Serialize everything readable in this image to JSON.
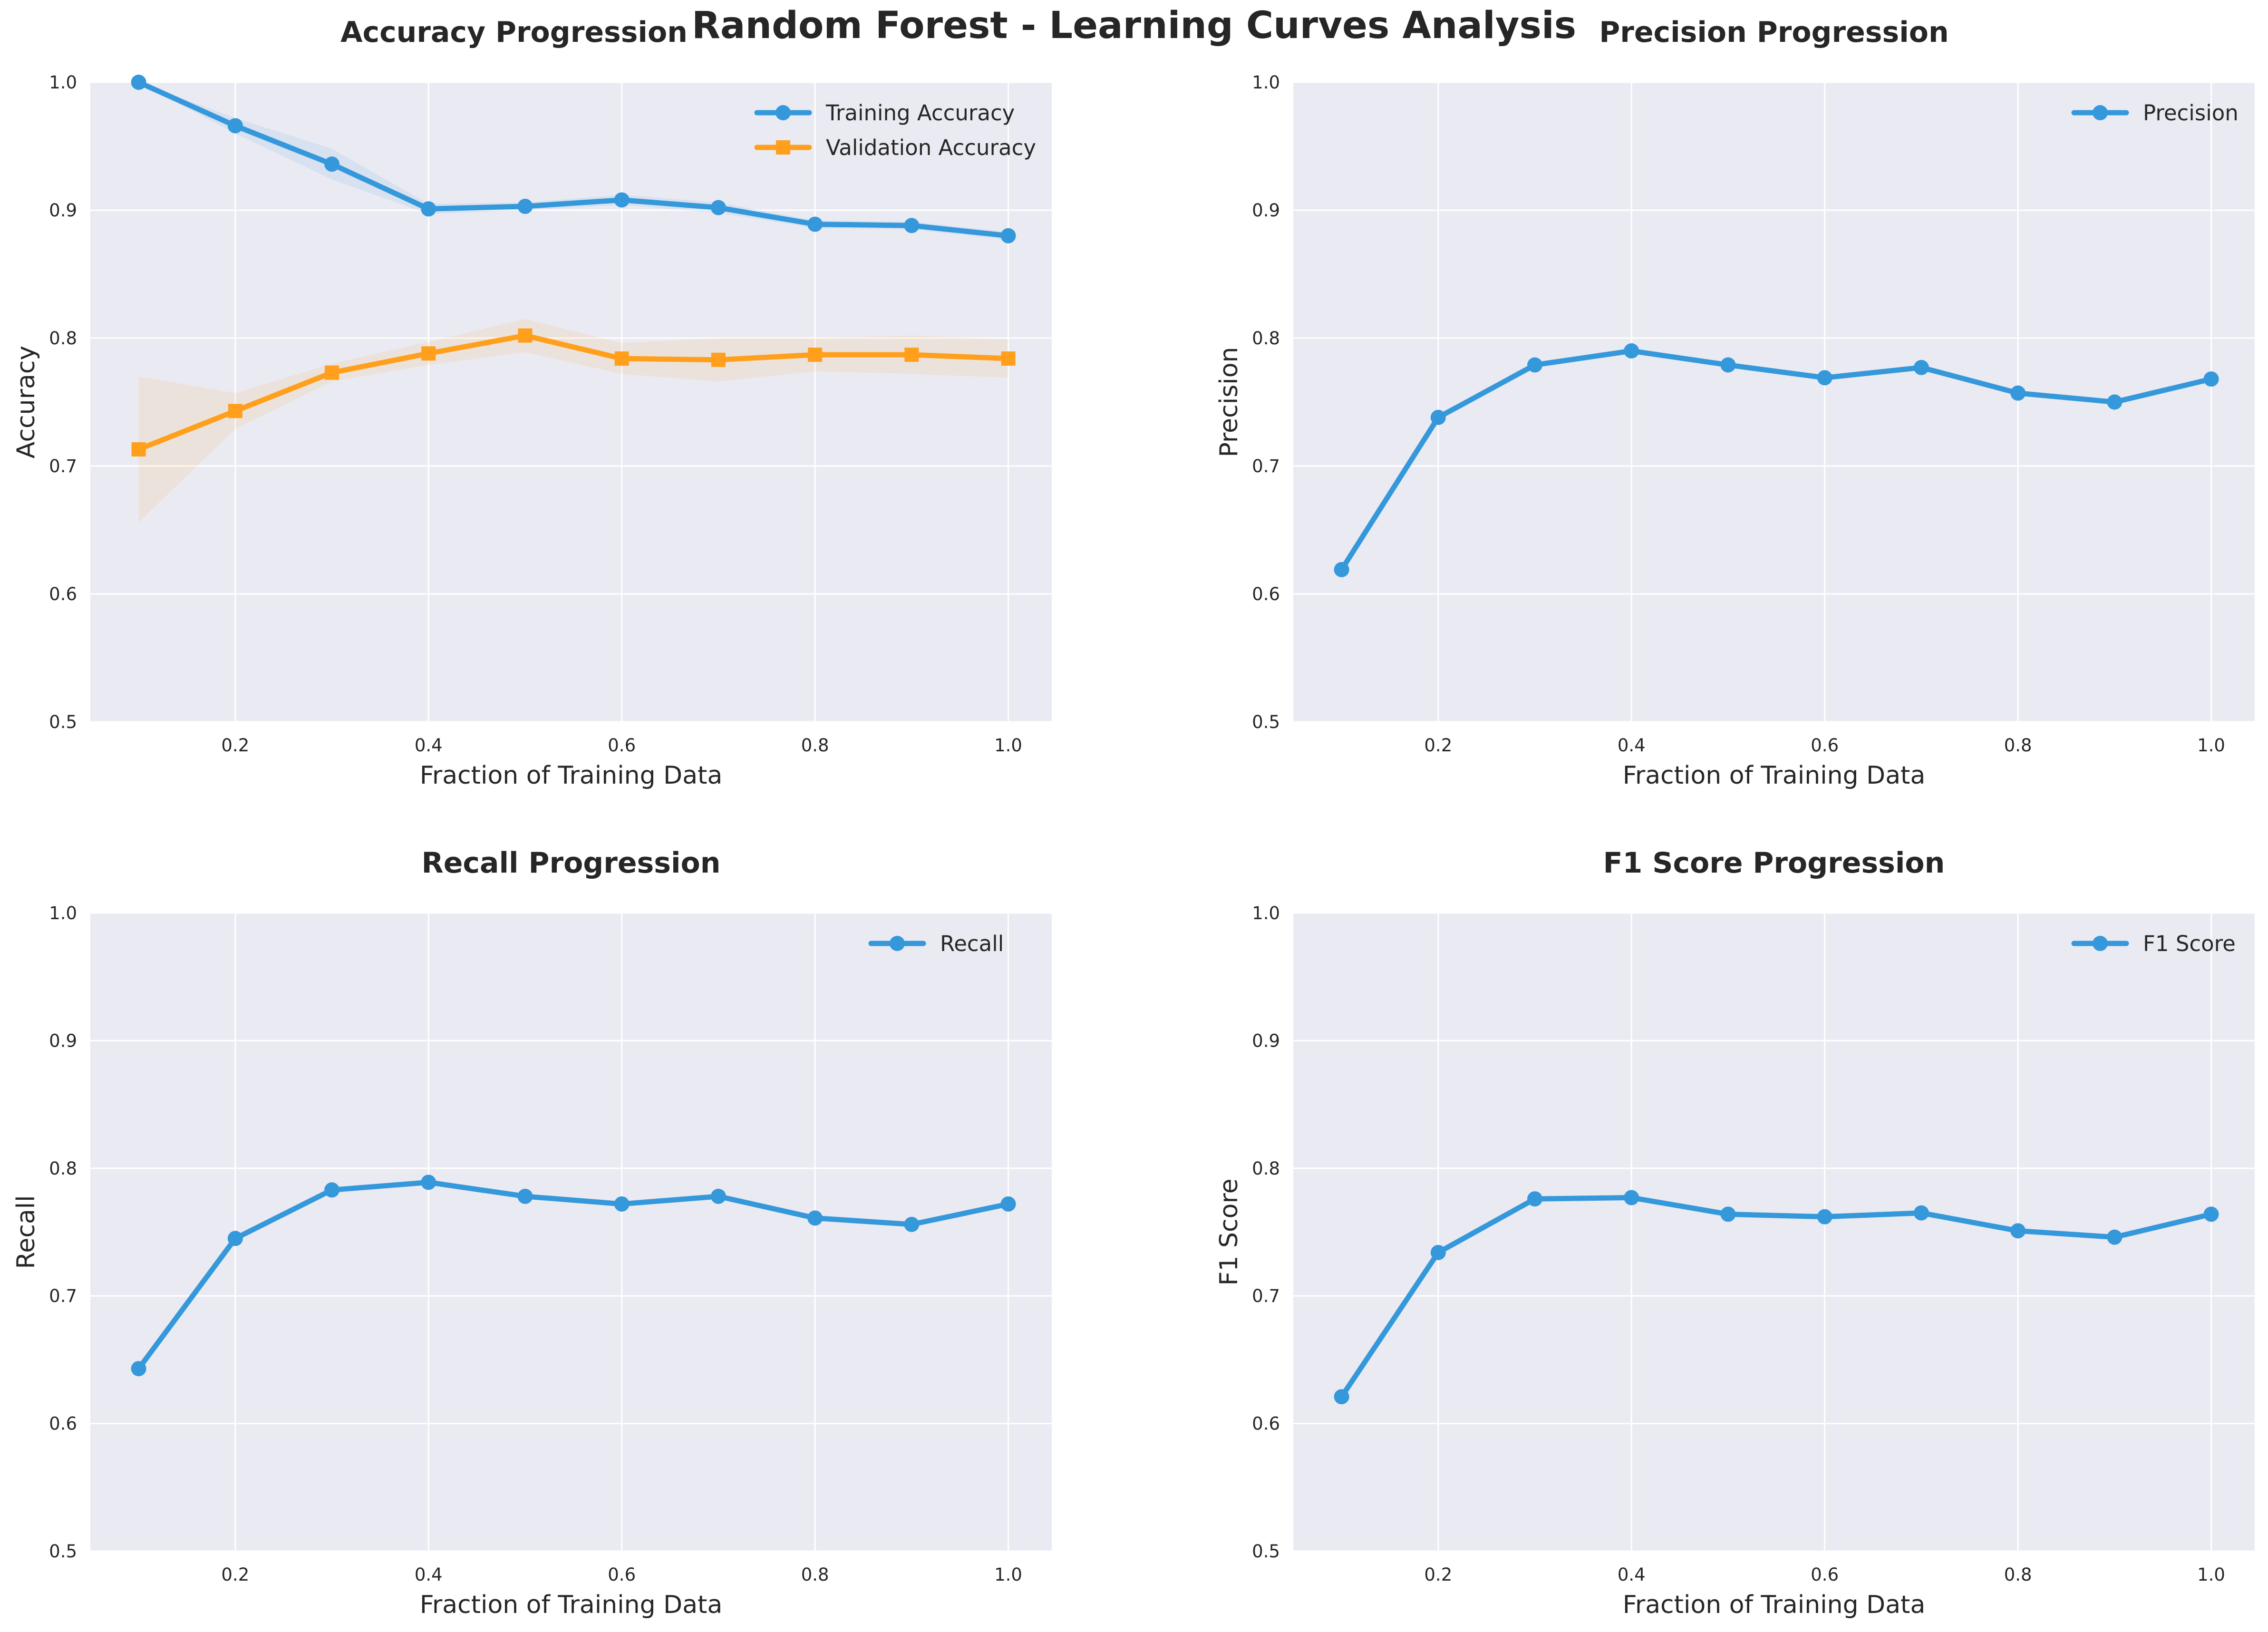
{
  "figure": {
    "suptitle": "Random Forest - Learning Curves Analysis"
  },
  "colors": {
    "training": "#3498db",
    "validation": "#ff9f1c",
    "plot_bg": "#eaeaf2",
    "text": "#262626"
  },
  "chart_data": [
    {
      "type": "line",
      "title": "Accuracy Progression",
      "xlabel": "Fraction of Training Data",
      "ylabel": "Accuracy",
      "xlim": [
        0.05,
        1.045
      ],
      "ylim": [
        0.5,
        1.0
      ],
      "xticks": [
        "0.2",
        "0.4",
        "0.6",
        "0.8",
        "1.0"
      ],
      "yticks": [
        "0.5",
        "0.6",
        "0.7",
        "0.8",
        "0.9",
        "1.0"
      ],
      "grid": true,
      "legend": "upper right",
      "x": [
        0.1,
        0.2,
        0.3,
        0.4,
        0.5,
        0.6,
        0.7,
        0.8,
        0.9,
        1.0
      ],
      "series": [
        {
          "name": "Training Accuracy",
          "color": "#3498db",
          "marker": "circle",
          "values": [
            1.0,
            0.966,
            0.936,
            0.901,
            0.903,
            0.908,
            0.902,
            0.889,
            0.888,
            0.88
          ],
          "band": [
            0.0,
            0.006,
            0.012,
            0.004,
            0.003,
            0.004,
            0.004,
            0.003,
            0.003,
            0.003
          ]
        },
        {
          "name": "Validation Accuracy",
          "color": "#ff9f1c",
          "marker": "square",
          "values": [
            0.713,
            0.743,
            0.773,
            0.788,
            0.802,
            0.784,
            0.783,
            0.787,
            0.787,
            0.784
          ],
          "band": [
            0.057,
            0.014,
            0.007,
            0.009,
            0.013,
            0.012,
            0.017,
            0.013,
            0.015,
            0.015
          ]
        }
      ]
    },
    {
      "type": "line",
      "title": "Precision Progression",
      "xlabel": "Fraction of Training Data",
      "ylabel": "Precision",
      "xlim": [
        0.05,
        1.045
      ],
      "ylim": [
        0.5,
        1.0
      ],
      "xticks": [
        "0.2",
        "0.4",
        "0.6",
        "0.8",
        "1.0"
      ],
      "yticks": [
        "0.5",
        "0.6",
        "0.7",
        "0.8",
        "0.9",
        "1.0"
      ],
      "grid": true,
      "legend": "upper right",
      "x": [
        0.1,
        0.2,
        0.3,
        0.4,
        0.5,
        0.6,
        0.7,
        0.8,
        0.9,
        1.0
      ],
      "series": [
        {
          "name": "Precision",
          "color": "#3498db",
          "marker": "circle",
          "values": [
            0.619,
            0.738,
            0.779,
            0.79,
            0.779,
            0.769,
            0.777,
            0.757,
            0.75,
            0.768
          ]
        }
      ]
    },
    {
      "type": "line",
      "title": "Recall Progression",
      "xlabel": "Fraction of Training Data",
      "ylabel": "Recall",
      "xlim": [
        0.05,
        1.045
      ],
      "ylim": [
        0.5,
        1.0
      ],
      "xticks": [
        "0.2",
        "0.4",
        "0.6",
        "0.8",
        "1.0"
      ],
      "yticks": [
        "0.5",
        "0.6",
        "0.7",
        "0.8",
        "0.9",
        "1.0"
      ],
      "grid": true,
      "legend": "upper right",
      "x": [
        0.1,
        0.2,
        0.3,
        0.4,
        0.5,
        0.6,
        0.7,
        0.8,
        0.9,
        1.0
      ],
      "series": [
        {
          "name": "Recall",
          "color": "#3498db",
          "marker": "circle",
          "values": [
            0.643,
            0.745,
            0.783,
            0.789,
            0.778,
            0.772,
            0.778,
            0.761,
            0.756,
            0.772
          ]
        }
      ]
    },
    {
      "type": "line",
      "title": "F1 Score Progression",
      "xlabel": "Fraction of Training Data",
      "ylabel": "F1 Score",
      "xlim": [
        0.05,
        1.045
      ],
      "ylim": [
        0.5,
        1.0
      ],
      "xticks": [
        "0.2",
        "0.4",
        "0.6",
        "0.8",
        "1.0"
      ],
      "yticks": [
        "0.5",
        "0.6",
        "0.7",
        "0.8",
        "0.9",
        "1.0"
      ],
      "grid": true,
      "legend": "upper right",
      "x": [
        0.1,
        0.2,
        0.3,
        0.4,
        0.5,
        0.6,
        0.7,
        0.8,
        0.9,
        1.0
      ],
      "series": [
        {
          "name": "F1 Score",
          "color": "#3498db",
          "marker": "circle",
          "values": [
            0.621,
            0.734,
            0.776,
            0.777,
            0.764,
            0.762,
            0.765,
            0.751,
            0.746,
            0.764
          ]
        }
      ]
    }
  ]
}
